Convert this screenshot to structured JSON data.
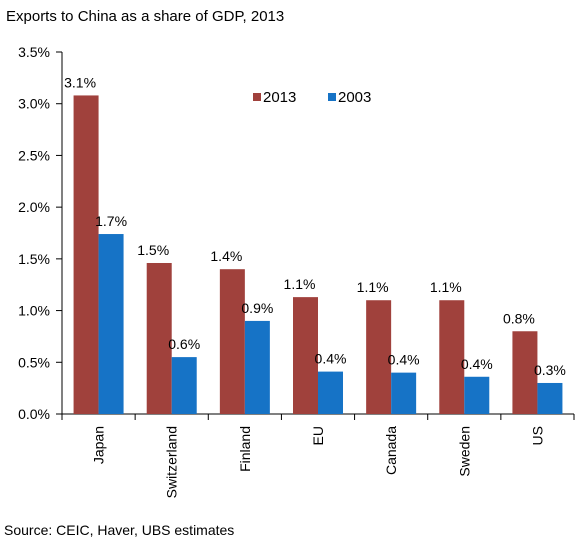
{
  "chart_data": {
    "type": "bar",
    "title": "Exports to China as a share of GDP, 2013",
    "categories": [
      "Japan",
      "Switzerland",
      "Finland",
      "EU",
      "Canada",
      "Sweden",
      "US"
    ],
    "series": [
      {
        "name": "2013",
        "color": "#A0413C",
        "values": [
          3.08,
          1.46,
          1.4,
          1.13,
          1.1,
          1.1,
          0.8
        ],
        "labels": [
          "3.1%",
          "1.5%",
          "1.4%",
          "1.1%",
          "1.1%",
          "1.1%",
          "0.8%"
        ]
      },
      {
        "name": "2003",
        "color": "#1673C6",
        "values": [
          1.74,
          0.55,
          0.9,
          0.41,
          0.4,
          0.36,
          0.3
        ],
        "labels": [
          "1.7%",
          "0.6%",
          "0.9%",
          "0.4%",
          "0.4%",
          "0.4%",
          "0.3%"
        ]
      }
    ],
    "ylim": [
      0,
      3.5
    ],
    "yticks": [
      0,
      0.5,
      1.0,
      1.5,
      2.0,
      2.5,
      3.0,
      3.5
    ],
    "ytick_labels": [
      "0.0%",
      "0.5%",
      "1.0%",
      "1.5%",
      "2.0%",
      "2.5%",
      "3.0%",
      "3.5%"
    ],
    "xlabel": "",
    "ylabel": "",
    "grid": false,
    "legend_position": "top-center"
  },
  "source": "Source:  CEIC, Haver, UBS estimates"
}
